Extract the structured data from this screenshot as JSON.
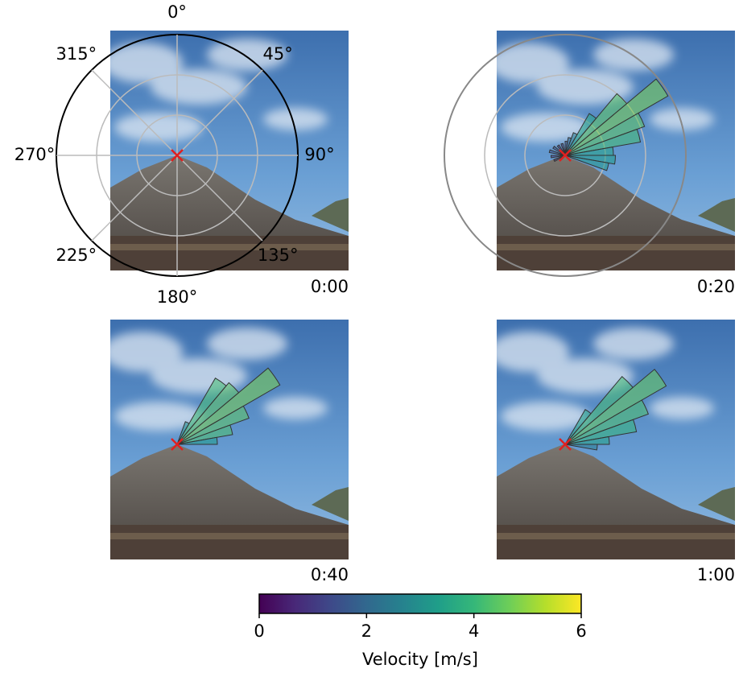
{
  "chart_data": {
    "type": "rose",
    "angle_ticks": [
      {
        "value": 0,
        "label": "0°"
      },
      {
        "value": 45,
        "label": "45°"
      },
      {
        "value": 90,
        "label": "90°"
      },
      {
        "value": 135,
        "label": "135°"
      },
      {
        "value": 180,
        "label": "180°"
      },
      {
        "value": 225,
        "label": "225°"
      },
      {
        "value": 270,
        "label": "270°"
      },
      {
        "value": 315,
        "label": "315°"
      }
    ],
    "rlim": [
      0,
      3
    ],
    "rgrid": [
      1,
      2
    ],
    "bin_width": 10,
    "colormap": "viridis",
    "colorbar": {
      "label": "Velocity [m/s]",
      "lim": [
        0,
        6
      ],
      "ticks": [
        0,
        2,
        4,
        6
      ]
    },
    "panels": [
      {
        "time": "0:00",
        "axes": true,
        "grid": true,
        "directions": [],
        "radii": [],
        "velocities": []
      },
      {
        "time": "0:20",
        "axes": false,
        "grid": true,
        "directions": [
          0,
          10,
          20,
          30,
          40,
          50,
          60,
          70,
          80,
          90,
          100,
          240,
          260,
          280,
          300,
          320,
          340
        ],
        "radii": [
          0.35,
          0.45,
          0.6,
          1.2,
          2.0,
          2.95,
          2.1,
          1.9,
          1.2,
          1.25,
          1.1,
          0.3,
          0.35,
          0.4,
          0.35,
          0.3,
          0.3
        ],
        "velocities": [
          1.5,
          2,
          2.5,
          3.5,
          4.5,
          4.8,
          4.5,
          4.2,
          3.5,
          3.3,
          3.2,
          1,
          1,
          1.5,
          1.5,
          1,
          1
        ]
      },
      {
        "time": "0:40",
        "axes": false,
        "grid": false,
        "directions": [
          20,
          30,
          40,
          50,
          60,
          70,
          80
        ],
        "radii": [
          0.6,
          1.9,
          2.0,
          2.95,
          1.9,
          1.4,
          1.0
        ],
        "velocities": [
          3,
          4.2,
          4.5,
          4.8,
          4.5,
          4.3,
          3.3
        ]
      },
      {
        "time": "1:00",
        "axes": false,
        "grid": false,
        "directions": [
          30,
          40,
          50,
          60,
          70,
          80,
          90
        ],
        "radii": [
          1.0,
          2.2,
          2.9,
          2.2,
          1.8,
          1.1,
          0.8
        ],
        "velocities": [
          3.5,
          4.2,
          4.6,
          4.3,
          4.0,
          3.5,
          2.5
        ]
      }
    ]
  }
}
